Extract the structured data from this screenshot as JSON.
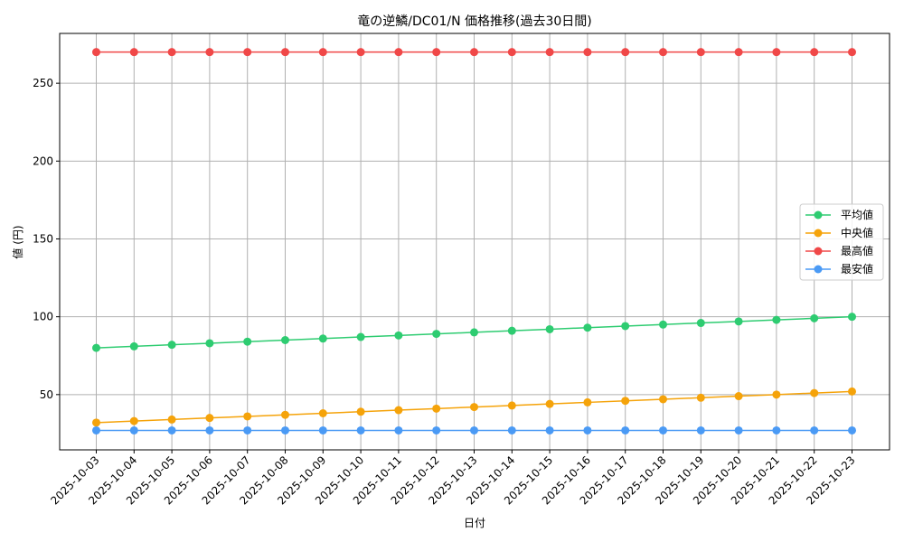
{
  "chart_data": {
    "type": "line",
    "title": "竜の逆鱗/DC01/N 価格推移(過去30日間)",
    "xlabel": "日付",
    "ylabel": "値 (円)",
    "categories": [
      "2025-10-03",
      "2025-10-04",
      "2025-10-05",
      "2025-10-06",
      "2025-10-07",
      "2025-10-08",
      "2025-10-09",
      "2025-10-10",
      "2025-10-11",
      "2025-10-12",
      "2025-10-13",
      "2025-10-14",
      "2025-10-15",
      "2025-10-16",
      "2025-10-17",
      "2025-10-18",
      "2025-10-19",
      "2025-10-20",
      "2025-10-21",
      "2025-10-22",
      "2025-10-23"
    ],
    "ylim": [
      14.5,
      282
    ],
    "yticks": [
      50,
      100,
      150,
      200,
      250
    ],
    "grid": true,
    "legend_position": "center-right",
    "series": [
      {
        "name": "平均値",
        "color": "#2ecc71",
        "values": [
          80,
          81,
          82,
          83,
          84,
          85,
          86,
          87,
          88,
          89,
          90,
          91,
          92,
          93,
          94,
          95,
          96,
          97,
          98,
          99,
          100
        ]
      },
      {
        "name": "中央値",
        "color": "#f5a30a",
        "values": [
          32,
          33,
          34,
          35,
          36,
          37,
          38,
          39,
          40,
          41,
          42,
          43,
          44,
          45,
          46,
          47,
          48,
          49,
          50,
          51,
          52
        ]
      },
      {
        "name": "最高値",
        "color": "#f04848",
        "values": [
          270,
          270,
          270,
          270,
          270,
          270,
          270,
          270,
          270,
          270,
          270,
          270,
          270,
          270,
          270,
          270,
          270,
          270,
          270,
          270,
          270
        ]
      },
      {
        "name": "最安値",
        "color": "#4a9af5",
        "values": [
          27,
          27,
          27,
          27,
          27,
          27,
          27,
          27,
          27,
          27,
          27,
          27,
          27,
          27,
          27,
          27,
          27,
          27,
          27,
          27,
          27
        ]
      }
    ]
  }
}
